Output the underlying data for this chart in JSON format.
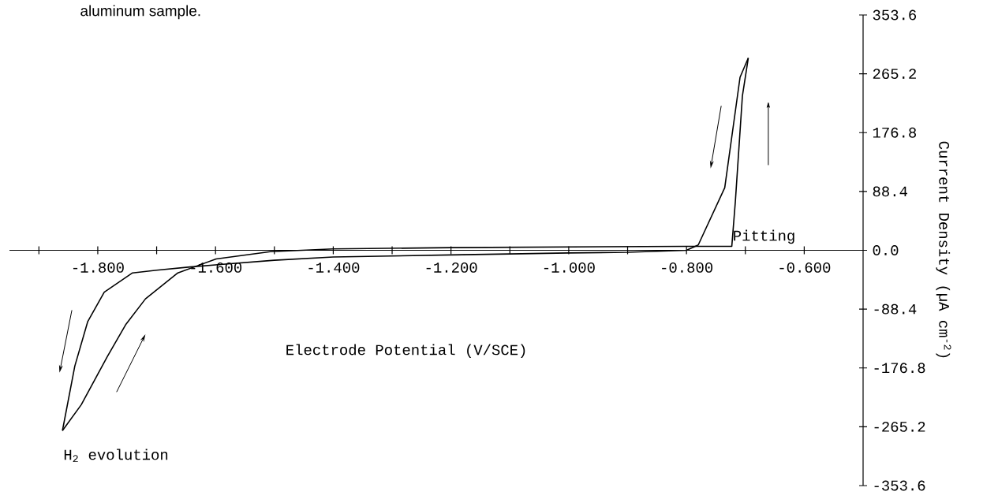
{
  "chart_data": {
    "type": "line",
    "xlabel": "Electrode Potential (V/SCE)",
    "ylabel": "Current Density (µA cm$^{-2}$)",
    "annotations": [
      "aluminum sample.",
      {
        "text": "Pitting",
        "x": -0.723,
        "y": 6
      },
      {
        "text": "H$_{2}$ evolution",
        "x": -1.86,
        "y": -271
      }
    ],
    "xlim": [
      -1.95,
      -0.5
    ],
    "ylim": [
      -353.6,
      353.6
    ],
    "xticks": [
      {
        "value": -1.9,
        "label": null
      },
      {
        "value": -1.8,
        "label": "-1.800"
      },
      {
        "value": -1.7,
        "label": null
      },
      {
        "value": -1.6,
        "label": "-1.600"
      },
      {
        "value": -1.5,
        "label": null
      },
      {
        "value": -1.4,
        "label": "-1.400"
      },
      {
        "value": -1.3,
        "label": null
      },
      {
        "value": -1.2,
        "label": "-1.200"
      },
      {
        "value": -1.1,
        "label": null
      },
      {
        "value": -1.0,
        "label": "-1.000"
      },
      {
        "value": -0.9,
        "label": null
      },
      {
        "value": -0.8,
        "label": "-0.800"
      },
      {
        "value": -0.7,
        "label": null
      },
      {
        "value": -0.6,
        "label": "-0.600"
      }
    ],
    "yticks": [
      -353.6,
      -265.2,
      -176.8,
      -88.4,
      {
        "value": 0,
        "label": "0.0"
      },
      88.4,
      176.8,
      265.2,
      353.6
    ],
    "grid": false,
    "marker": "none",
    "line_style": "solid",
    "series": [
      {
        "color": "#000000",
        "x": [
          -0.695,
          -0.709,
          -0.735,
          -0.78,
          -0.8,
          -0.9,
          -1.0,
          -1.2,
          -1.4,
          -1.5,
          -1.6,
          -1.643,
          -1.7,
          -1.741,
          -1.789,
          -1.817,
          -1.839,
          -1.86
        ],
        "values": [
          289,
          260,
          94,
          8,
          0,
          -3,
          -4,
          -7,
          -10,
          -15,
          -22,
          -25,
          -30,
          -34,
          -63,
          -107,
          -174,
          -271
        ]
      },
      {
        "color": "#000000",
        "x": [
          -1.86,
          -1.828,
          -1.784,
          -1.752,
          -1.719,
          -1.664,
          -1.599,
          -1.507,
          -1.4,
          -1.2,
          -1.0,
          -0.8,
          -0.74,
          -0.723,
          -0.717,
          -0.705,
          -0.695
        ],
        "values": [
          -271,
          -232,
          -160,
          -111,
          -73,
          -34,
          -13,
          -2,
          2,
          4,
          5,
          6,
          6,
          6,
          73,
          232,
          289
        ]
      }
    ]
  }
}
